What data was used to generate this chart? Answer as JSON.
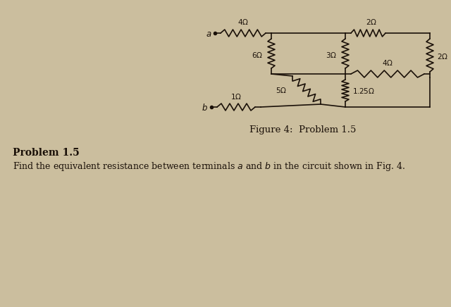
{
  "bg_color": "#cbbe9e",
  "fig_width": 6.4,
  "fig_height": 4.36,
  "title_text": "Figure 4:  Problem 1.5",
  "problem_heading": "Problem 1.5",
  "problem_body": "Find the equivalent resistance between terminals $a$ and $b$ in the circuit shown in Fig. 4.",
  "lw": 1.2,
  "color": "#1a1008",
  "fs_label": 7.5,
  "fs_title": 9.5,
  "fs_heading": 10,
  "fs_body": 9
}
